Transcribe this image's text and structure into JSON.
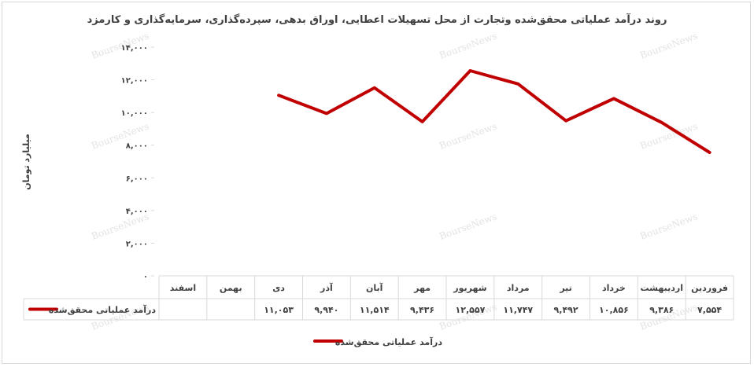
{
  "chart_data": {
    "type": "line",
    "title": "روند درآمد عملیاتی محقق‌شده وتجارت از محل تسهیلات اعطایی، اوراق بدهی، سپرده‌گذاری، سرمایه‌گذاری و کارمزد",
    "ylabel": "میلیارد تومان",
    "xlabel": "",
    "ylim": [
      0,
      14000
    ],
    "yticks": [
      "۰",
      "۲,۰۰۰",
      "۴,۰۰۰",
      "۶,۰۰۰",
      "۸,۰۰۰",
      "۱۰,۰۰۰",
      "۱۲,۰۰۰",
      "۱۴,۰۰۰"
    ],
    "ytick_values": [
      0,
      2000,
      4000,
      6000,
      8000,
      10000,
      12000,
      14000
    ],
    "categories": [
      "فروردین",
      "اردیبهشت",
      "خرداد",
      "تیر",
      "مرداد",
      "شهریور",
      "مهر",
      "آبان",
      "آذر",
      "دی",
      "بهمن",
      "اسفند"
    ],
    "series": [
      {
        "name": "درآمد عملیاتی محقق‌شده",
        "color": "#c00000",
        "values": [
          7554,
          9386,
          10856,
          9492,
          11747,
          12557,
          9436,
          11514,
          9940,
          11053,
          null,
          null
        ],
        "labels": [
          "۷,۵۵۴",
          "۹,۳۸۶",
          "۱۰,۸۵۶",
          "۹,۴۹۲",
          "۱۱,۷۴۷",
          "۱۲,۵۵۷",
          "۹,۴۳۶",
          "۱۱,۵۱۴",
          "۹,۹۴۰",
          "۱۱,۰۵۳",
          "",
          ""
        ]
      }
    ],
    "grid": false,
    "legend": "bottom",
    "data_table": true
  },
  "watermark": "BourseNews"
}
